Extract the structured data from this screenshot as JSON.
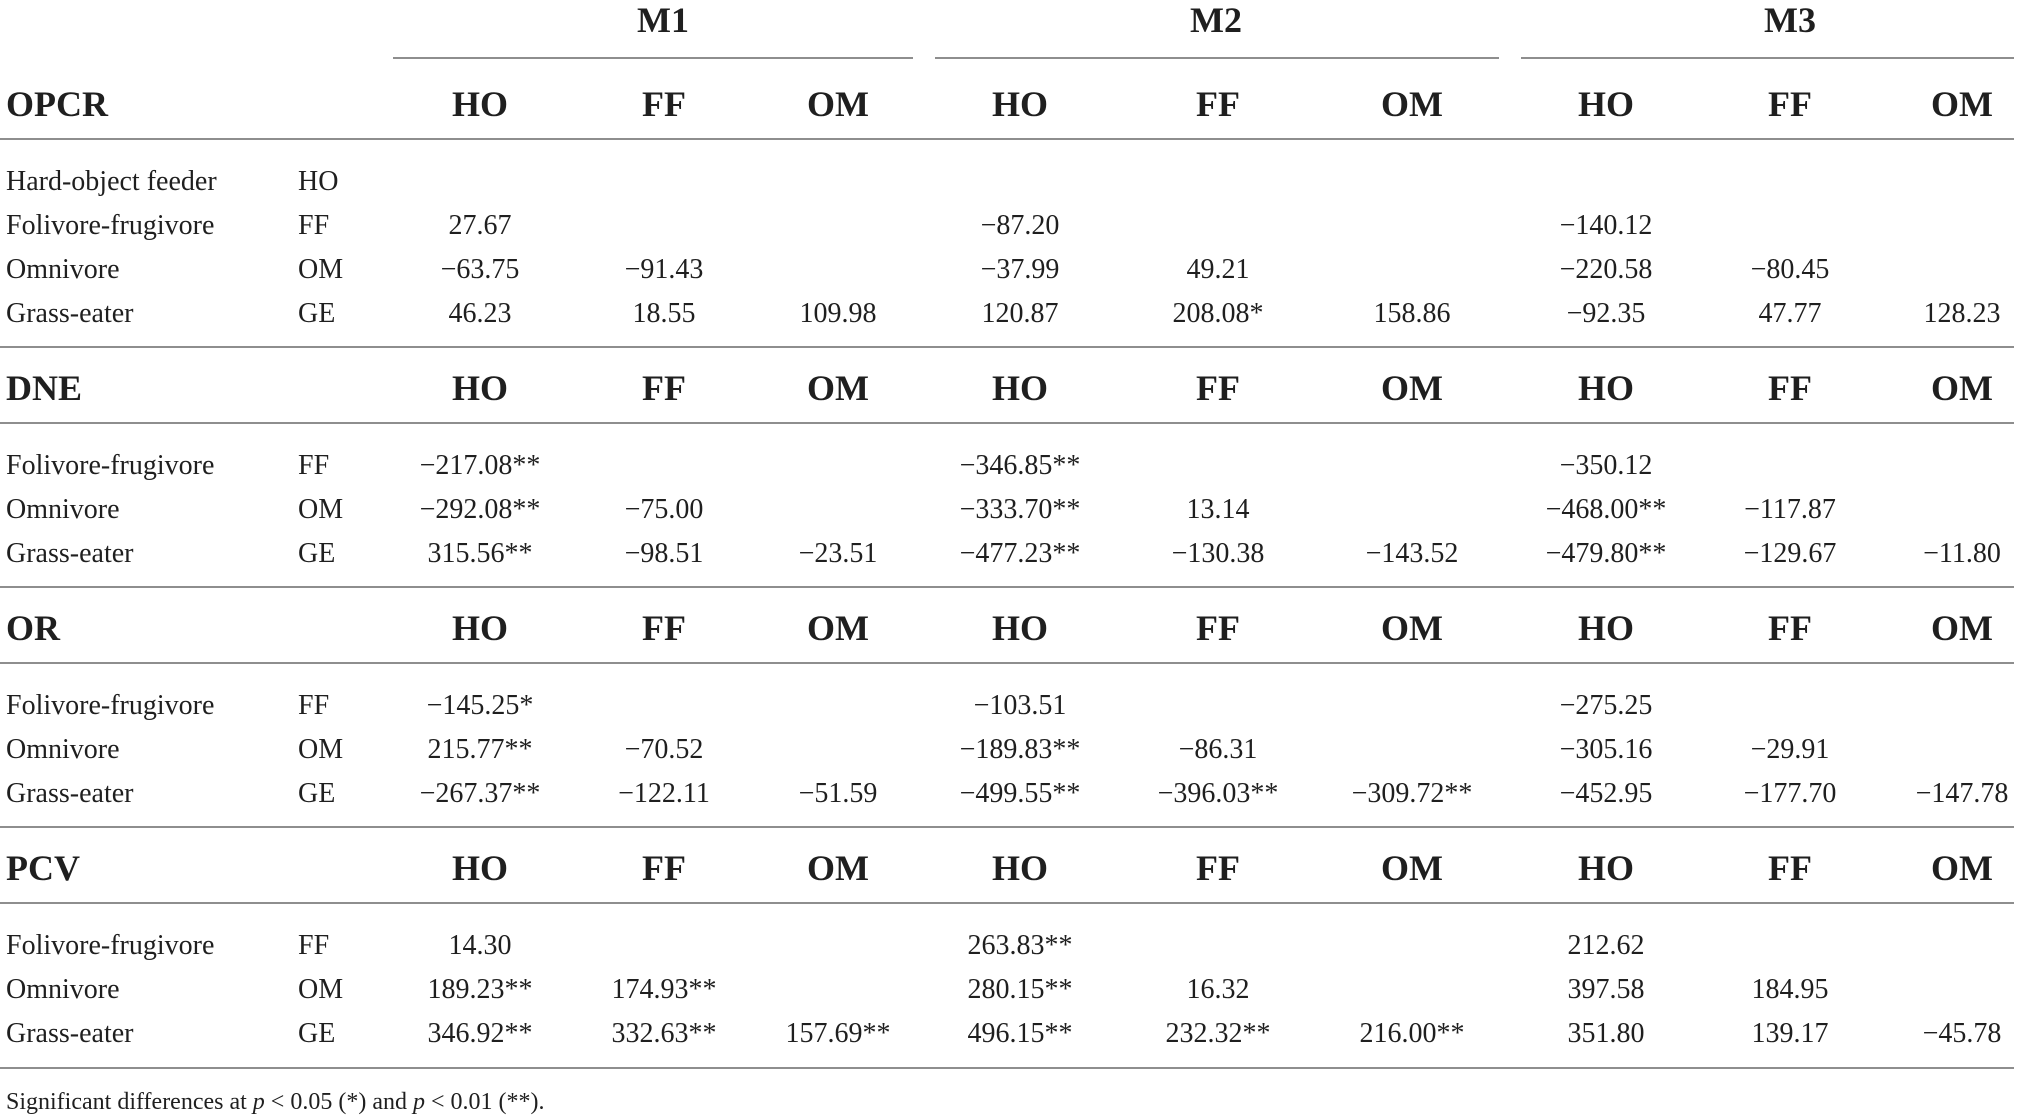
{
  "groups": [
    "M1",
    "M2",
    "M3"
  ],
  "columns": [
    "HO",
    "FF",
    "OM"
  ],
  "sections": [
    {
      "title": "OPCR",
      "rows": [
        {
          "label": "Hard-object feeder",
          "abbr": "HO",
          "values": [
            "",
            "",
            "",
            "",
            "",
            "",
            "",
            "",
            ""
          ]
        },
        {
          "label": "Folivore-frugivore",
          "abbr": "FF",
          "values": [
            "27.67",
            "",
            "",
            "−87.20",
            "",
            "",
            "−140.12",
            "",
            ""
          ]
        },
        {
          "label": "Omnivore",
          "abbr": "OM",
          "values": [
            "−63.75",
            "−91.43",
            "",
            "−37.99",
            "49.21",
            "",
            "−220.58",
            "−80.45",
            ""
          ]
        },
        {
          "label": "Grass-eater",
          "abbr": "GE",
          "values": [
            "46.23",
            "18.55",
            "109.98",
            "120.87",
            "208.08*",
            "158.86",
            "−92.35",
            "47.77",
            "128.23"
          ]
        }
      ]
    },
    {
      "title": "DNE",
      "rows": [
        {
          "label": "Folivore-frugivore",
          "abbr": "FF",
          "values": [
            "−217.08**",
            "",
            "",
            "−346.85**",
            "",
            "",
            "−350.12",
            "",
            ""
          ]
        },
        {
          "label": "Omnivore",
          "abbr": "OM",
          "values": [
            "−292.08**",
            "−75.00",
            "",
            "−333.70**",
            "13.14",
            "",
            "−468.00**",
            "−117.87",
            ""
          ]
        },
        {
          "label": "Grass-eater",
          "abbr": "GE",
          "values": [
            "315.56**",
            "−98.51",
            "−23.51",
            "−477.23**",
            "−130.38",
            "−143.52",
            "−479.80**",
            "−129.67",
            "−11.80"
          ]
        }
      ]
    },
    {
      "title": "OR",
      "rows": [
        {
          "label": "Folivore-frugivore",
          "abbr": "FF",
          "values": [
            "−145.25*",
            "",
            "",
            "−103.51",
            "",
            "",
            "−275.25",
            "",
            ""
          ]
        },
        {
          "label": "Omnivore",
          "abbr": "OM",
          "values": [
            "215.77**",
            "−70.52",
            "",
            "−189.83**",
            "−86.31",
            "",
            "−305.16",
            "−29.91",
            ""
          ]
        },
        {
          "label": "Grass-eater",
          "abbr": "GE",
          "values": [
            "−267.37**",
            "−122.11",
            "−51.59",
            "−499.55**",
            "−396.03**",
            "−309.72**",
            "−452.95",
            "−177.70",
            "−147.78"
          ]
        }
      ]
    },
    {
      "title": "PCV",
      "rows": [
        {
          "label": "Folivore-frugivore",
          "abbr": "FF",
          "values": [
            "14.30",
            "",
            "",
            "263.83**",
            "",
            "",
            "212.62",
            "",
            ""
          ]
        },
        {
          "label": "Omnivore",
          "abbr": "OM",
          "values": [
            "189.23**",
            "174.93**",
            "",
            "280.15**",
            "16.32",
            "",
            "397.58",
            "184.95",
            ""
          ]
        },
        {
          "label": "Grass-eater",
          "abbr": "GE",
          "values": [
            "346.92**",
            "332.63**",
            "157.69**",
            "496.15**",
            "232.32**",
            "216.00**",
            "351.80",
            "139.17",
            "−45.78"
          ]
        }
      ]
    }
  ],
  "footnote": {
    "pre": "Significant differences at ",
    "p1": "p",
    "mid1": " < 0.05 (*) and ",
    "p2": "p",
    "post": " < 0.01 (**)."
  }
}
